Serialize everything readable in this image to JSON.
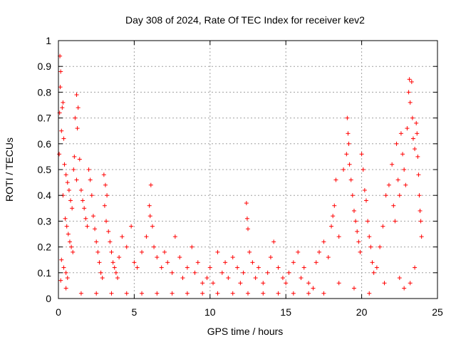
{
  "chart_data": {
    "type": "scatter",
    "title": "Day 308 of 2024, Rate Of TEC Index for receiver kev2",
    "xlabel": "GPS time / hours",
    "ylabel": "ROTI / TECUs",
    "xlim": [
      0,
      25
    ],
    "ylim": [
      0,
      1
    ],
    "x_ticks": [
      "0",
      "5",
      "10",
      "15",
      "20",
      "25"
    ],
    "y_ticks": [
      "0",
      "0.1",
      "0.2",
      "0.3",
      "0.4",
      "0.5",
      "0.6",
      "0.7",
      "0.8",
      "0.9",
      "1"
    ],
    "grid": true,
    "marker": "+",
    "color": "#ff0000",
    "series": [
      {
        "points": [
          [
            0.1,
            0.94
          ],
          [
            0.15,
            0.88
          ],
          [
            0.12,
            0.82
          ],
          [
            0.3,
            0.76
          ],
          [
            0.25,
            0.74
          ],
          [
            0.08,
            0.72
          ],
          [
            0.2,
            0.65
          ],
          [
            0.35,
            0.62
          ],
          [
            0.05,
            0.56
          ],
          [
            0.4,
            0.52
          ],
          [
            0.5,
            0.48
          ],
          [
            0.6,
            0.45
          ],
          [
            0.7,
            0.42
          ],
          [
            0.3,
            0.4
          ],
          [
            0.8,
            0.38
          ],
          [
            0.9,
            0.35
          ],
          [
            0.45,
            0.31
          ],
          [
            0.55,
            0.28
          ],
          [
            0.65,
            0.25
          ],
          [
            0.75,
            0.22
          ],
          [
            0.85,
            0.2
          ],
          [
            0.95,
            0.18
          ],
          [
            0.2,
            0.15
          ],
          [
            0.35,
            0.12
          ],
          [
            0.5,
            0.1
          ],
          [
            0.6,
            0.08
          ],
          [
            0.15,
            0.07
          ],
          [
            1.2,
            0.79
          ],
          [
            1.3,
            0.74
          ],
          [
            1.1,
            0.7
          ],
          [
            1.25,
            0.66
          ],
          [
            1.05,
            0.55
          ],
          [
            1.4,
            0.54
          ],
          [
            1.0,
            0.5
          ],
          [
            1.2,
            0.46
          ],
          [
            1.5,
            0.42
          ],
          [
            1.6,
            0.38
          ],
          [
            1.7,
            0.35
          ],
          [
            1.8,
            0.31
          ],
          [
            1.9,
            0.28
          ],
          [
            2.0,
            0.5
          ],
          [
            2.1,
            0.46
          ],
          [
            2.2,
            0.4
          ],
          [
            2.3,
            0.32
          ],
          [
            2.4,
            0.27
          ],
          [
            2.5,
            0.22
          ],
          [
            2.6,
            0.18
          ],
          [
            2.7,
            0.14
          ],
          [
            2.8,
            0.1
          ],
          [
            2.9,
            0.08
          ],
          [
            3.0,
            0.48
          ],
          [
            3.1,
            0.44
          ],
          [
            3.2,
            0.4
          ],
          [
            3.05,
            0.36
          ],
          [
            3.15,
            0.3
          ],
          [
            3.3,
            0.26
          ],
          [
            3.4,
            0.22
          ],
          [
            3.5,
            0.18
          ],
          [
            3.6,
            0.14
          ],
          [
            3.7,
            0.12
          ],
          [
            3.8,
            0.1
          ],
          [
            3.9,
            0.08
          ],
          [
            4.0,
            0.16
          ],
          [
            4.2,
            0.24
          ],
          [
            4.5,
            0.2
          ],
          [
            4.8,
            0.28
          ],
          [
            5.0,
            0.14
          ],
          [
            5.2,
            0.12
          ],
          [
            5.5,
            0.18
          ],
          [
            5.8,
            0.24
          ],
          [
            6.0,
            0.36
          ],
          [
            6.05,
            0.32
          ],
          [
            6.1,
            0.44
          ],
          [
            6.2,
            0.28
          ],
          [
            6.3,
            0.2
          ],
          [
            6.5,
            0.16
          ],
          [
            6.8,
            0.12
          ],
          [
            7.0,
            0.18
          ],
          [
            7.2,
            0.14
          ],
          [
            7.5,
            0.1
          ],
          [
            7.7,
            0.24
          ],
          [
            8.0,
            0.16
          ],
          [
            8.2,
            0.08
          ],
          [
            8.5,
            0.12
          ],
          [
            8.8,
            0.2
          ],
          [
            9.0,
            0.1
          ],
          [
            9.2,
            0.14
          ],
          [
            9.5,
            0.06
          ],
          [
            9.8,
            0.08
          ],
          [
            10.0,
            0.12
          ],
          [
            10.2,
            0.06
          ],
          [
            10.5,
            0.18
          ],
          [
            10.8,
            0.1
          ],
          [
            11.0,
            0.14
          ],
          [
            11.2,
            0.08
          ],
          [
            11.5,
            0.16
          ],
          [
            11.8,
            0.12
          ],
          [
            12.0,
            0.06
          ],
          [
            12.2,
            0.1
          ],
          [
            12.4,
            0.37
          ],
          [
            12.45,
            0.31
          ],
          [
            12.5,
            0.27
          ],
          [
            12.6,
            0.18
          ],
          [
            12.8,
            0.14
          ],
          [
            13.0,
            0.08
          ],
          [
            13.2,
            0.12
          ],
          [
            13.5,
            0.06
          ],
          [
            13.8,
            0.1
          ],
          [
            14.0,
            0.16
          ],
          [
            14.2,
            0.22
          ],
          [
            14.5,
            0.12
          ],
          [
            14.8,
            0.08
          ],
          [
            15.0,
            0.06
          ],
          [
            15.2,
            0.1
          ],
          [
            15.5,
            0.14
          ],
          [
            15.8,
            0.18
          ],
          [
            16.0,
            0.08
          ],
          [
            16.2,
            0.12
          ],
          [
            16.5,
            0.06
          ],
          [
            16.8,
            0.04
          ],
          [
            17.0,
            0.14
          ],
          [
            17.2,
            0.18
          ],
          [
            17.5,
            0.22
          ],
          [
            17.8,
            0.16
          ],
          [
            18.0,
            0.28
          ],
          [
            18.2,
            0.36
          ],
          [
            18.3,
            0.46
          ],
          [
            18.1,
            0.32
          ],
          [
            18.5,
            0.24
          ],
          [
            18.8,
            0.5
          ],
          [
            19.0,
            0.56
          ],
          [
            19.05,
            0.7
          ],
          [
            19.1,
            0.64
          ],
          [
            19.15,
            0.6
          ],
          [
            19.2,
            0.52
          ],
          [
            19.3,
            0.46
          ],
          [
            19.4,
            0.4
          ],
          [
            19.5,
            0.34
          ],
          [
            19.6,
            0.3
          ],
          [
            19.7,
            0.26
          ],
          [
            19.8,
            0.22
          ],
          [
            19.9,
            0.18
          ],
          [
            20.0,
            0.56
          ],
          [
            20.1,
            0.5
          ],
          [
            20.2,
            0.42
          ],
          [
            20.3,
            0.38
          ],
          [
            20.4,
            0.3
          ],
          [
            20.5,
            0.24
          ],
          [
            20.6,
            0.2
          ],
          [
            20.7,
            0.14
          ],
          [
            20.8,
            0.1
          ],
          [
            21.0,
            0.12
          ],
          [
            21.2,
            0.2
          ],
          [
            21.4,
            0.28
          ],
          [
            21.6,
            0.4
          ],
          [
            21.8,
            0.44
          ],
          [
            22.0,
            0.52
          ],
          [
            22.1,
            0.36
          ],
          [
            22.2,
            0.3
          ],
          [
            22.3,
            0.6
          ],
          [
            22.4,
            0.46
          ],
          [
            22.5,
            0.4
          ],
          [
            22.6,
            0.64
          ],
          [
            22.7,
            0.56
          ],
          [
            22.8,
            0.5
          ],
          [
            22.9,
            0.44
          ],
          [
            23.0,
            0.66
          ],
          [
            23.1,
            0.8
          ],
          [
            23.15,
            0.85
          ],
          [
            23.2,
            0.76
          ],
          [
            23.3,
            0.84
          ],
          [
            23.35,
            0.7
          ],
          [
            23.4,
            0.62
          ],
          [
            23.5,
            0.58
          ],
          [
            23.6,
            0.68
          ],
          [
            23.65,
            0.64
          ],
          [
            23.7,
            0.55
          ],
          [
            23.75,
            0.48
          ],
          [
            23.8,
            0.4
          ],
          [
            23.85,
            0.34
          ],
          [
            23.9,
            0.3
          ],
          [
            23.95,
            0.24
          ],
          [
            23.5,
            0.12
          ],
          [
            23.2,
            0.06
          ],
          [
            22.8,
            0.04
          ],
          [
            22.5,
            0.08
          ],
          [
            21.5,
            0.06
          ],
          [
            20.5,
            0.02
          ],
          [
            19.5,
            0.04
          ],
          [
            18.5,
            0.06
          ],
          [
            17.5,
            0.02
          ],
          [
            16.5,
            0.02
          ],
          [
            15.5,
            0.02
          ],
          [
            14.5,
            0.02
          ],
          [
            13.5,
            0.02
          ],
          [
            12.5,
            0.02
          ],
          [
            11.5,
            0.02
          ],
          [
            10.5,
            0.02
          ],
          [
            9.5,
            0.02
          ],
          [
            8.5,
            0.02
          ],
          [
            7.5,
            0.02
          ],
          [
            6.5,
            0.02
          ],
          [
            5.5,
            0.02
          ],
          [
            4.5,
            0.02
          ],
          [
            3.5,
            0.02
          ],
          [
            2.5,
            0.02
          ],
          [
            1.5,
            0.02
          ],
          [
            0.5,
            0.04
          ]
        ]
      }
    ]
  }
}
